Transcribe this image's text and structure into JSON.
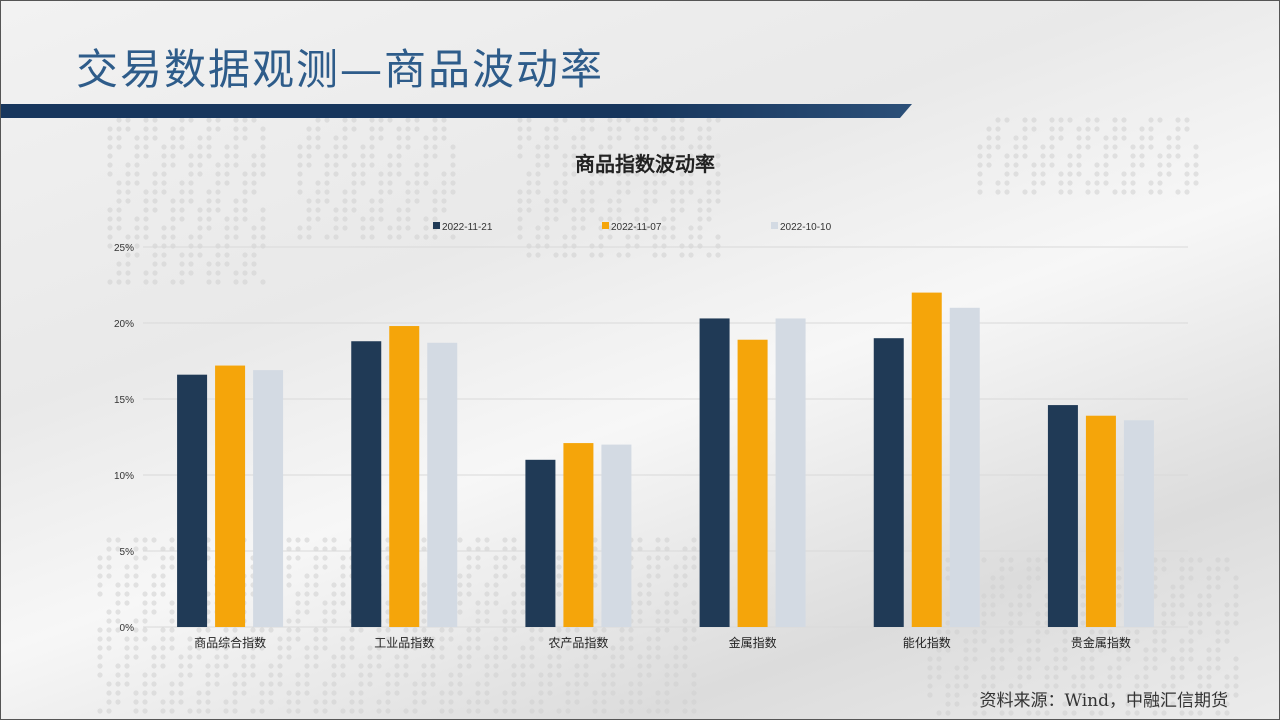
{
  "slide": {
    "title": "交易数据观测—商品波动率",
    "source": "资料来源：Wind，中融汇信期货"
  },
  "colors": {
    "title": "#2e5c8a",
    "title_bar": "#17365d",
    "series": [
      "#203a56",
      "#f5a50a",
      "#d3dae3"
    ],
    "grid": "#d9d9d9"
  },
  "chart_data": {
    "type": "bar",
    "title": "商品指数波动率",
    "categories": [
      "商品综合指数",
      "工业品指数",
      "农产品指数",
      "金属指数",
      "能化指数",
      "贵金属指数"
    ],
    "series": [
      {
        "name": "2022-11-21",
        "values": [
          16.6,
          18.8,
          11.0,
          20.3,
          19.0,
          14.6
        ]
      },
      {
        "name": "2022-11-07",
        "values": [
          17.2,
          19.8,
          12.1,
          18.9,
          22.0,
          13.9
        ]
      },
      {
        "name": "2022-10-10",
        "values": [
          16.9,
          18.7,
          12.0,
          20.3,
          21.0,
          13.6
        ]
      }
    ],
    "ylim": [
      0,
      25
    ],
    "yticks": [
      "0%",
      "5%",
      "10%",
      "15%",
      "20%",
      "25%"
    ],
    "ytick_values": [
      0,
      5,
      10,
      15,
      20,
      25
    ],
    "legend_position": "top",
    "grid": true
  }
}
